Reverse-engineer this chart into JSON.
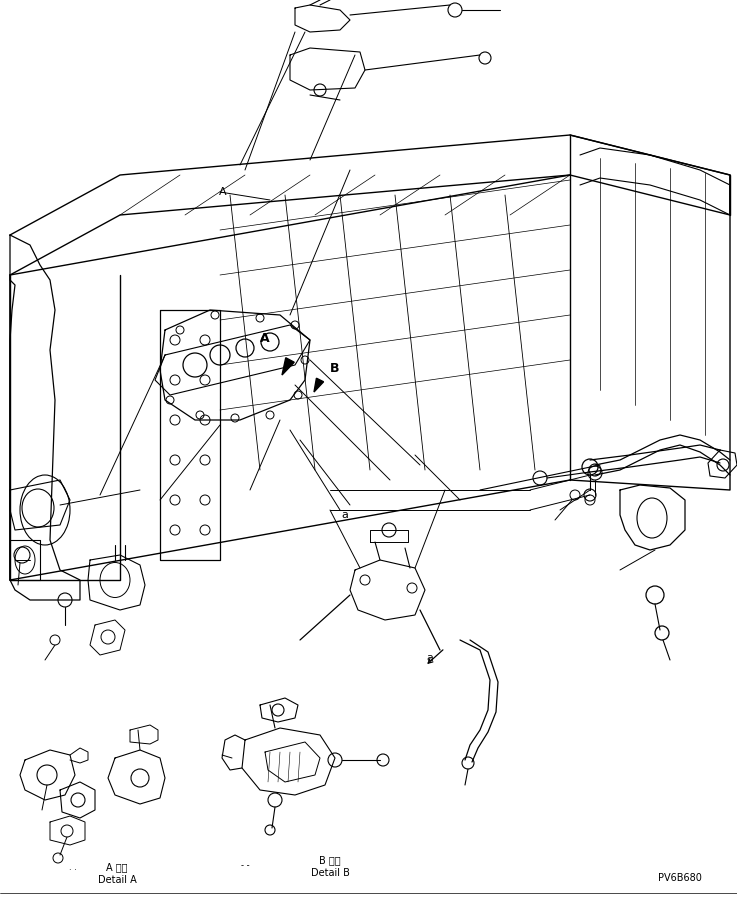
{
  "background_color": "#ffffff",
  "figsize": [
    7.37,
    9.02
  ],
  "dpi": 100,
  "label_A_detail_jp": "A 詳細",
  "label_A_detail_en": "Detail A",
  "label_B_detail_jp": "B 詳細",
  "label_B_detail_en": "Detail B",
  "part_number": "PV6B680",
  "line_color": "#000000",
  "line_width": 0.7,
  "note_dots_left": ". .",
  "note_dash_mid": "- -"
}
